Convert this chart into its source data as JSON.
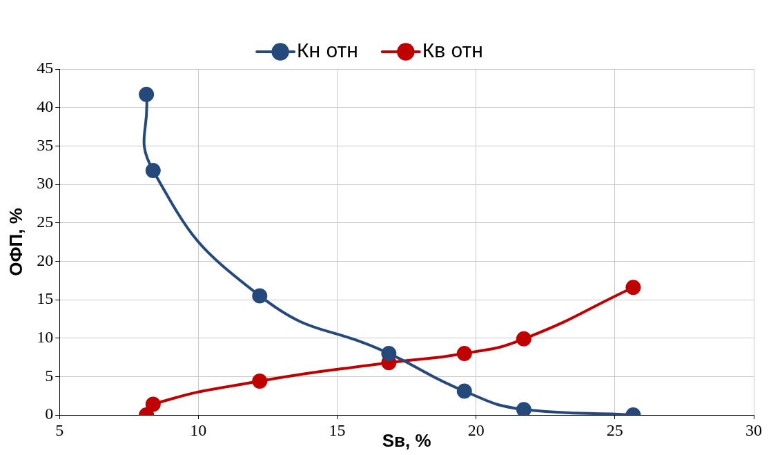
{
  "chart_data": {
    "type": "line",
    "xlabel": "Sв, %",
    "ylabel": "ОФП, %",
    "xlim": [
      5,
      30
    ],
    "xticks": [
      5,
      10,
      15,
      20,
      25,
      30
    ],
    "ylim": [
      0,
      45
    ],
    "yticks": [
      0,
      5,
      10,
      15,
      20,
      25,
      30,
      35,
      40,
      45
    ],
    "grid": true,
    "legend": "top",
    "marker": "circle",
    "line_style": "solid",
    "series": [
      {
        "name": "Кн отн",
        "color": "#25497a",
        "x": [
          8.13,
          8.37,
          12.21,
          16.86,
          19.58,
          21.72,
          25.66
        ],
        "values": [
          41.7,
          31.8,
          15.5,
          8.0,
          3.1,
          0.7,
          0
        ]
      },
      {
        "name": "Кв отн",
        "color": "#c00000",
        "x": [
          8.13,
          8.37,
          12.21,
          16.86,
          19.58,
          21.72,
          25.66
        ],
        "values": [
          0,
          1.4,
          4.4,
          6.8,
          8.0,
          9.9,
          16.6
        ]
      }
    ]
  }
}
